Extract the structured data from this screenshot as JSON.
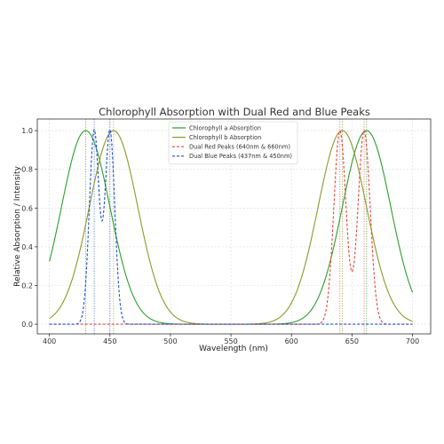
{
  "chart_data": {
    "type": "line",
    "title": "Chlorophyll Absorption with Dual Red and Blue Peaks",
    "xlabel": "Wavelength (nm)",
    "ylabel": "Relative Absorption / Intensity",
    "xlim": [
      390,
      715
    ],
    "ylim": [
      -0.05,
      1.06
    ],
    "x_ticks": [
      400,
      450,
      500,
      550,
      600,
      650,
      700
    ],
    "y_ticks": [
      0.0,
      0.2,
      0.4,
      0.6,
      0.8,
      1.0
    ],
    "x_tick_labels": [
      "400",
      "450",
      "500",
      "550",
      "600",
      "650",
      "700"
    ],
    "y_tick_labels": [
      "0.0",
      "0.2",
      "0.4",
      "0.6",
      "0.8",
      "1.0"
    ],
    "grid": true,
    "legend_position": "top-center",
    "x_range": [
      400,
      700
    ],
    "series": [
      {
        "name": "Chlorophyll a Absorption",
        "color": "#2ca02c",
        "style": "solid",
        "peaks": [
          {
            "center": 430,
            "sigma": 20,
            "amplitude": 1.0
          },
          {
            "center": 662,
            "sigma": 20,
            "amplitude": 1.0
          }
        ]
      },
      {
        "name": "Chlorophyll b Absorption",
        "color": "#8c9a2a",
        "style": "solid",
        "peaks": [
          {
            "center": 453,
            "sigma": 20,
            "amplitude": 1.0
          },
          {
            "center": 642,
            "sigma": 20,
            "amplitude": 1.0
          }
        ]
      },
      {
        "name": "Dual Red Peaks (640nm & 660nm)",
        "color": "#e8463a",
        "style": "dashed",
        "peaks": [
          {
            "center": 640,
            "sigma": 5,
            "amplitude": 1.0
          },
          {
            "center": 660,
            "sigma": 5,
            "amplitude": 1.0
          }
        ]
      },
      {
        "name": "Dual Blue Peaks (437nm & 450nm)",
        "color": "#1f4fd6",
        "style": "dashed",
        "peaks": [
          {
            "center": 437,
            "sigma": 4,
            "amplitude": 1.0
          },
          {
            "center": 450,
            "sigma": 4,
            "amplitude": 1.0
          }
        ]
      }
    ],
    "reference_lines": [
      {
        "x": 437,
        "color": "#1f4fd6"
      },
      {
        "x": 450,
        "color": "#1f4fd6"
      },
      {
        "x": 640,
        "color": "#e8463a"
      },
      {
        "x": 660,
        "color": "#e8463a"
      },
      {
        "x": 430,
        "color": "#2ca02c"
      },
      {
        "x": 662,
        "color": "#2ca02c"
      },
      {
        "x": 453,
        "color": "#8c9a2a"
      },
      {
        "x": 642,
        "color": "#8c9a2a"
      }
    ]
  }
}
